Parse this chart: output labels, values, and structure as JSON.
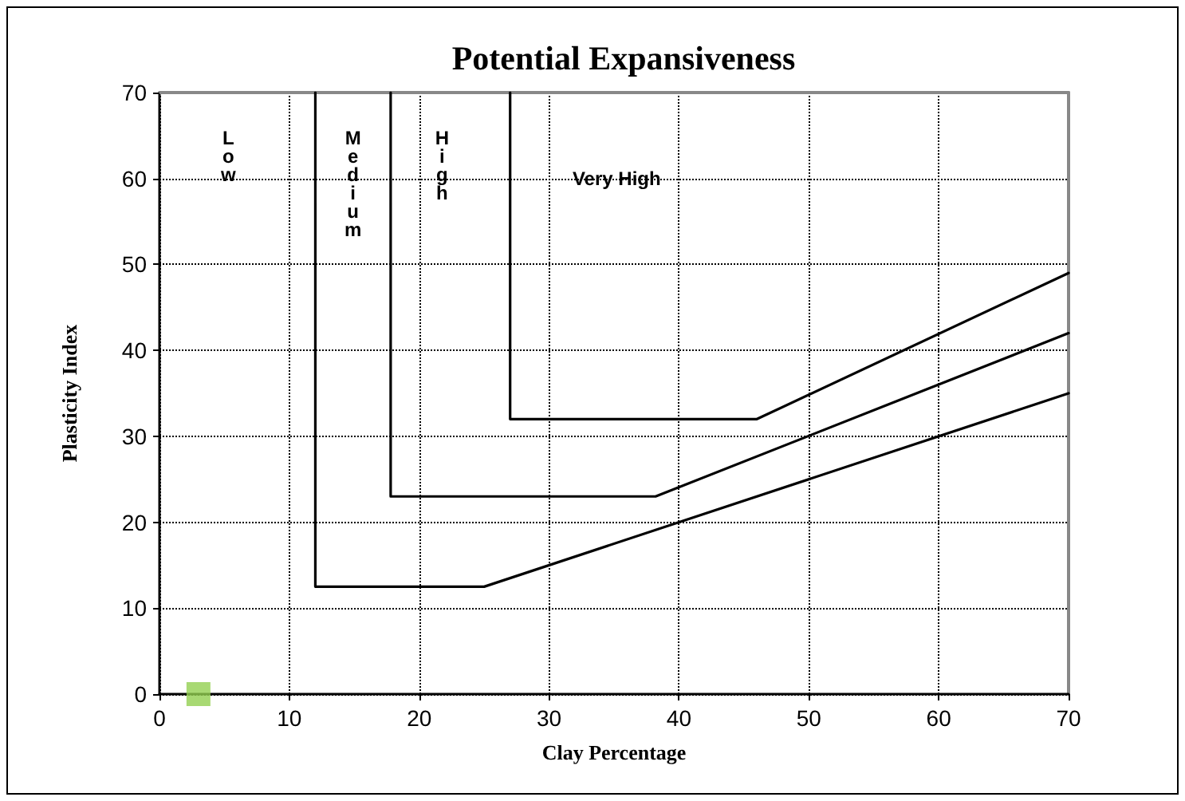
{
  "chart_data": {
    "type": "line",
    "title": "Potential Expansiveness",
    "xlabel": "Clay Percentage",
    "ylabel": "Plasticity Index",
    "xlim": [
      0,
      70
    ],
    "xticks": [
      0,
      10,
      20,
      30,
      40,
      50,
      60,
      70
    ],
    "ylim": [
      0,
      70
    ],
    "yticks": [
      0,
      10,
      20,
      30,
      40,
      50,
      60,
      70
    ],
    "grid": true,
    "marker": "none",
    "line_style": "solid",
    "series": [
      {
        "color": "#000000",
        "x": [
          12,
          12,
          25,
          70
        ],
        "values": [
          70,
          12.5,
          12.5,
          35
        ]
      },
      {
        "color": "#000000",
        "x": [
          17.8,
          17.8,
          38.2,
          70
        ],
        "values": [
          70,
          23,
          23,
          42
        ]
      },
      {
        "color": "#000000",
        "x": [
          27,
          27,
          46,
          70
        ],
        "values": [
          70,
          32,
          32,
          49
        ]
      },
      {
        "type": "scatter",
        "marker": "square",
        "color": "#92d050",
        "x": [
          3
        ],
        "values": [
          0
        ]
      }
    ],
    "annotations": [
      "Low",
      "Medium",
      "High",
      "Very High"
    ]
  }
}
